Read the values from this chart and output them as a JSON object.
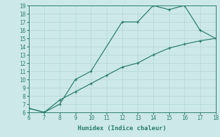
{
  "line1_x": [
    6,
    7,
    8,
    9,
    10,
    12,
    13,
    14,
    15,
    16,
    17,
    18
  ],
  "line1_y": [
    6.5,
    6.0,
    7.0,
    10.0,
    11.0,
    17.0,
    17.0,
    19.0,
    18.5,
    19.0,
    16.0,
    15.0
  ],
  "line2_x": [
    6,
    7,
    8,
    9,
    10,
    11,
    12,
    13,
    14,
    15,
    16,
    17,
    18
  ],
  "line2_y": [
    6.5,
    6.0,
    7.5,
    8.5,
    9.5,
    10.5,
    11.5,
    12.0,
    13.0,
    13.8,
    14.3,
    14.7,
    15.0
  ],
  "line_color": "#2d7d6e",
  "bg_color": "#cce8e8",
  "grid_color": "#b8d8d8",
  "xlabel": "Humidex (Indice chaleur)",
  "xlim": [
    6,
    18
  ],
  "ylim": [
    6,
    19
  ],
  "xticks": [
    6,
    7,
    8,
    9,
    10,
    11,
    12,
    13,
    14,
    15,
    16,
    17,
    18
  ],
  "yticks": [
    6,
    7,
    8,
    9,
    10,
    11,
    12,
    13,
    14,
    15,
    16,
    17,
    18,
    19
  ],
  "xlabel_fontsize": 6.5,
  "tick_fontsize": 5.5
}
